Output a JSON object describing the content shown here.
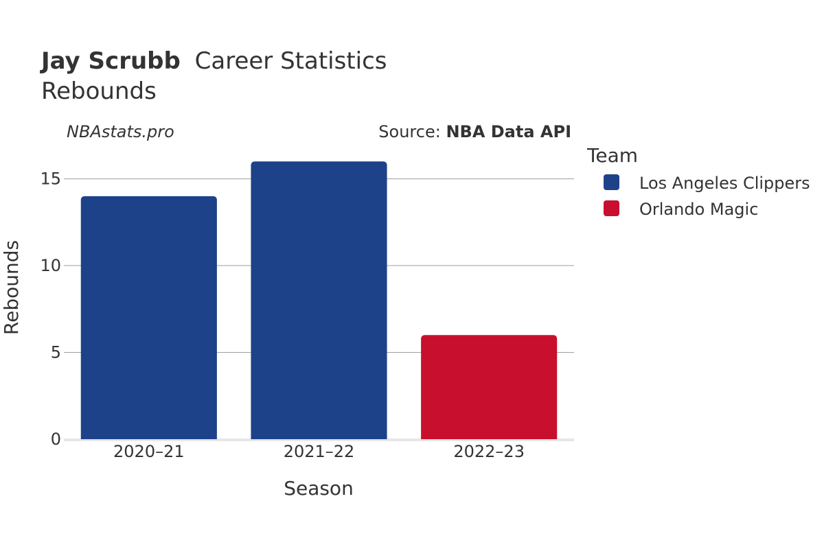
{
  "header": {
    "player_name": "Jay Scrubb",
    "title_rest": "Career Statistics",
    "subtitle": "Rebounds"
  },
  "branding": {
    "site": "NBAstats.pro",
    "source_prefix": "Source: ",
    "source_name": "NBA Data API"
  },
  "colors": {
    "Los Angeles Clippers": "#1d428a",
    "Orlando Magic": "#c8102e"
  },
  "chart_data": {
    "type": "bar",
    "categories": [
      "2020–21",
      "2021–22",
      "2022–23"
    ],
    "values": [
      14,
      16,
      6
    ],
    "bar_team": [
      "Los Angeles Clippers",
      "Los Angeles Clippers",
      "Orlando Magic"
    ],
    "xlabel": "Season",
    "ylabel": "Rebounds",
    "ylim": [
      0,
      17
    ],
    "yticks": [
      0,
      5,
      10,
      15
    ],
    "grid": true,
    "legend": {
      "title": "Team",
      "placement": "right",
      "entries": [
        "Los Angeles Clippers",
        "Orlando Magic"
      ]
    }
  }
}
